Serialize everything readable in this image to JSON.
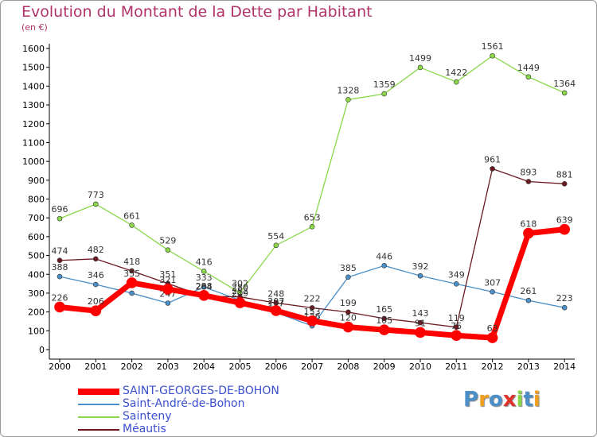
{
  "chart_data": {
    "type": "line",
    "title": "Evolution du Montant de la Dette par Habitant",
    "unit_label": "(en €)",
    "x": [
      "2000",
      "2001",
      "2002",
      "2003",
      "2004",
      "2005",
      "2006",
      "2007",
      "2008",
      "2009",
      "2010",
      "2011",
      "2012",
      "2013",
      "2014"
    ],
    "ylim": [
      0,
      1600
    ],
    "yticks": [
      0,
      100,
      200,
      300,
      400,
      500,
      600,
      700,
      800,
      900,
      1000,
      1100,
      1200,
      1300,
      1400,
      1500,
      1600
    ],
    "grid": false,
    "legend_position": "bottom-left",
    "series": [
      {
        "name": "Saint-André-de-Bohon",
        "color": "#4a8fc8",
        "labels": [
          "388",
          "346",
          "",
          "247",
          "333",
          "262",
          "197",
          "126",
          "385",
          "446",
          "392",
          "349",
          "307",
          "261",
          "223"
        ],
        "values": [
          388,
          346,
          300,
          247,
          333,
          262,
          197,
          126,
          385,
          446,
          392,
          349,
          307,
          261,
          223
        ]
      },
      {
        "name": "Sainteny",
        "color": "#8ad84a",
        "labels": [
          "696",
          "773",
          "661",
          "529",
          "416",
          "302",
          "554",
          "653",
          "1328",
          "1359",
          "1499",
          "1422",
          "1561",
          "1449",
          "1364"
        ],
        "values": [
          696,
          773,
          661,
          529,
          416,
          302,
          554,
          653,
          1328,
          1359,
          1499,
          1422,
          1561,
          1449,
          1364
        ]
      },
      {
        "name": "Méautis",
        "color": "#6b1a22",
        "labels": [
          "474",
          "482",
          "418",
          "351",
          "284",
          "280",
          "248",
          "222",
          "199",
          "165",
          "143",
          "119",
          "",
          "893",
          "881"
        ],
        "values": [
          474,
          482,
          418,
          351,
          284,
          280,
          248,
          222,
          199,
          165,
          143,
          119,
          961,
          893,
          881
        ]
      },
      {
        "name": "SAINT-GEORGES-DE-BOHON",
        "color": "#ff0000",
        "labels": [
          "226",
          "206",
          "355",
          "321",
          "288",
          "249",
          "207",
          "153",
          "120",
          "105",
          "91",
          "75",
          "63",
          "618",
          "639"
        ],
        "values": [
          226,
          206,
          355,
          321,
          288,
          249,
          207,
          153,
          120,
          105,
          91,
          75,
          63,
          618,
          639
        ]
      }
    ],
    "extra_labels": [
      {
        "series": "Méautis",
        "index": 12,
        "text": "961"
      }
    ]
  },
  "legend": [
    {
      "name": "SAINT-GEORGES-DE-BOHON",
      "color": "#ff0000"
    },
    {
      "name": "Saint-André-de-Bohon",
      "color": "#4a8fc8"
    },
    {
      "name": "Sainteny",
      "color": "#8ad84a"
    },
    {
      "name": "Méautis",
      "color": "#6b1a22"
    }
  ],
  "logo": {
    "text": "Proxiti"
  }
}
